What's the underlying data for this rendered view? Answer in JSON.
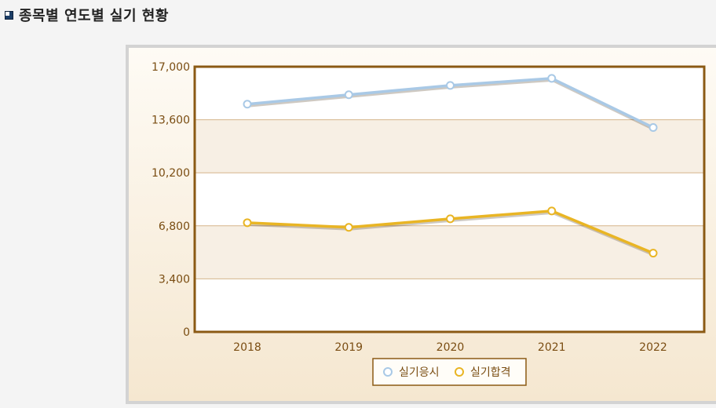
{
  "page": {
    "title": "종목별 연도별 실기 현황"
  },
  "icons": {
    "title_bullet": "square-bullet-icon"
  },
  "colors": {
    "frame": "#8b5a14",
    "grid": "#d5b48a",
    "band_light": "#ffffff",
    "band_tint": "#f7efe4",
    "tick_text": "#7a4d12",
    "series_1": "#a9c9e6",
    "series_2": "#e9b524"
  },
  "chart_data": {
    "type": "line",
    "categories": [
      "2018",
      "2019",
      "2020",
      "2021",
      "2022"
    ],
    "series": [
      {
        "name": "실기응시",
        "values": [
          14600,
          15200,
          15800,
          16250,
          13100
        ]
      },
      {
        "name": "실기합격",
        "values": [
          7000,
          6700,
          7250,
          7750,
          5050
        ]
      }
    ],
    "yticks": [
      "17,000",
      "13,600",
      "10,200",
      "6,800",
      "3,400",
      "0"
    ],
    "ytick_values": [
      17000,
      13600,
      10200,
      6800,
      3400,
      0
    ],
    "ylim": [
      0,
      17000
    ],
    "grid": true,
    "legend": "bottom-center"
  }
}
